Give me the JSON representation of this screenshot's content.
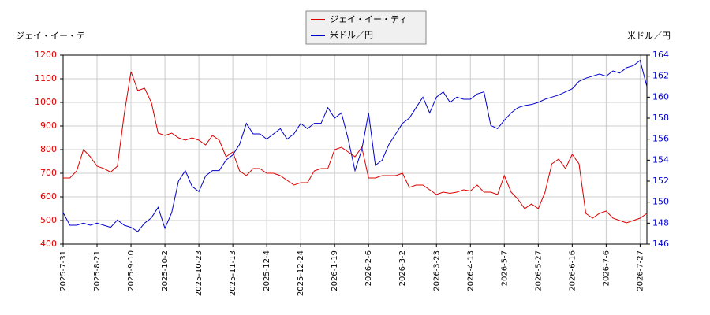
{
  "chart_data": {
    "type": "line",
    "y_label": "ジェイ・イー・テ",
    "y2_label": "米ドル／円",
    "categories": [
      "2025-7-31",
      null,
      null,
      null,
      null,
      "2025-8-21",
      null,
      null,
      null,
      null,
      "2025-9-10",
      null,
      null,
      null,
      null,
      "2025-10-2",
      null,
      null,
      null,
      null,
      "2025-10-23",
      null,
      null,
      null,
      null,
      "2025-11-13",
      null,
      null,
      null,
      null,
      "2025-12-4",
      null,
      null,
      null,
      null,
      "2025-12-24",
      null,
      null,
      null,
      null,
      "2026-1-19",
      null,
      null,
      null,
      null,
      "2026-2-6",
      null,
      null,
      null,
      null,
      "2026-3-2",
      null,
      null,
      null,
      null,
      "2026-3-23",
      null,
      null,
      null,
      null,
      "2026-4-13",
      null,
      null,
      null,
      null,
      "2026-5-7",
      null,
      null,
      null,
      null,
      "2026-5-27",
      null,
      null,
      null,
      null,
      "2026-6-16",
      null,
      null,
      null,
      null,
      "2026-7-6",
      null,
      null,
      null,
      null,
      "2026-7-27",
      null
    ],
    "series": [
      {
        "name": "ジェイ・イー・ティ",
        "color": "#dd0000",
        "axis": "y",
        "values": [
          680,
          680,
          710,
          800,
          770,
          730,
          720,
          705,
          730,
          950,
          1130,
          1050,
          1060,
          1000,
          870,
          860,
          870,
          850,
          840,
          850,
          840,
          820,
          860,
          840,
          770,
          790,
          710,
          690,
          720,
          720,
          700,
          700,
          690,
          670,
          650,
          660,
          660,
          710,
          720,
          720,
          800,
          810,
          790,
          770,
          810,
          680,
          680,
          690,
          690,
          690,
          700,
          640,
          650,
          650,
          630,
          610,
          620,
          615,
          620,
          630,
          625,
          650,
          620,
          620,
          610,
          690,
          620,
          590,
          550,
          570,
          550,
          620,
          740,
          760,
          720,
          780,
          740,
          530,
          510,
          530,
          540,
          510,
          500,
          490,
          500,
          510,
          530
        ]
      },
      {
        "name": "米ドル／円",
        "color": "#0000cc",
        "axis": "y2",
        "values": [
          149,
          147.8,
          147.8,
          148,
          147.8,
          148,
          147.8,
          147.6,
          148.3,
          147.8,
          147.6,
          147.2,
          148,
          148.5,
          149.5,
          147.5,
          149,
          152,
          153,
          151.5,
          151,
          152.5,
          153,
          153,
          154,
          154.5,
          155.5,
          157.5,
          156.5,
          156.5,
          156,
          156.5,
          157,
          156,
          156.5,
          157.5,
          157,
          157.5,
          157.5,
          159,
          158,
          158.5,
          156,
          153,
          155,
          158.5,
          153.5,
          154,
          155.5,
          156.5,
          157.5,
          158,
          159,
          160,
          158.5,
          160,
          160.5,
          159.5,
          160,
          159.8,
          159.8,
          160.3,
          160.5,
          157.3,
          157,
          157.8,
          158.5,
          159,
          159.2,
          159.3,
          159.5,
          159.8,
          160,
          160.2,
          160.5,
          160.8,
          161.5,
          161.8,
          162,
          162.2,
          162,
          162.5,
          162.3,
          162.8,
          163,
          163.5,
          161
        ]
      }
    ],
    "ylim": [
      400,
      1200
    ],
    "yticks": [
      400,
      500,
      600,
      700,
      800,
      900,
      1000,
      1100,
      1200
    ],
    "y2lim": [
      146,
      164
    ],
    "y2ticks": [
      146,
      148,
      150,
      152,
      154,
      156,
      158,
      160,
      162,
      164
    ],
    "grid": true,
    "legend": "top"
  }
}
